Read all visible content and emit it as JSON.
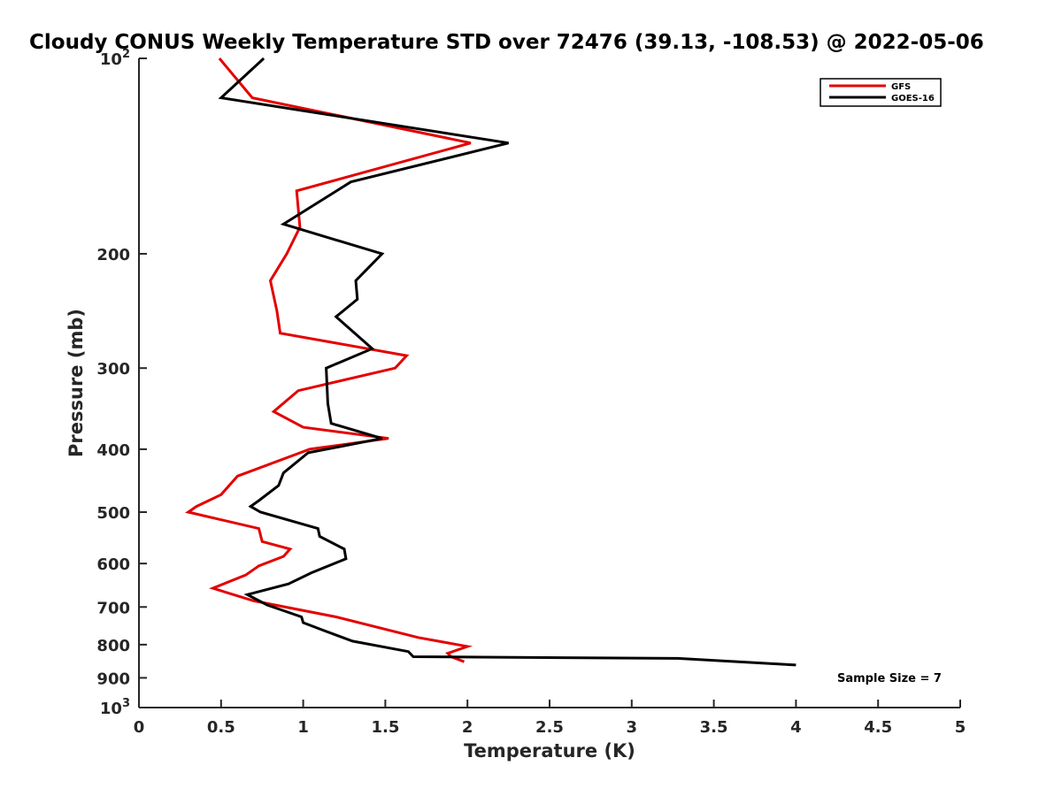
{
  "chart_data": {
    "type": "line",
    "title": "Cloudy CONUS Weekly Temperature STD over 72476 (39.13, -108.53) @ 2022-05-06",
    "xlabel": "Temperature (K)",
    "ylabel": "Pressure (mb)",
    "xlim": [
      0,
      5
    ],
    "ylim": [
      100,
      1000
    ],
    "yscale": "log",
    "y_reversed": true,
    "x_ticks": [
      "0",
      "0.5",
      "1",
      "1.5",
      "2",
      "2.5",
      "3",
      "3.5",
      "4",
      "4.5",
      "5"
    ],
    "x_tick_values": [
      0,
      0.5,
      1,
      1.5,
      2,
      2.5,
      3,
      3.5,
      4,
      4.5,
      5
    ],
    "y_ticks": [
      {
        "value": 100,
        "label": "10",
        "sup": "2"
      },
      {
        "value": 200,
        "label": "200",
        "sup": ""
      },
      {
        "value": 300,
        "label": "300",
        "sup": ""
      },
      {
        "value": 400,
        "label": "400",
        "sup": ""
      },
      {
        "value": 500,
        "label": "500",
        "sup": ""
      },
      {
        "value": 600,
        "label": "600",
        "sup": ""
      },
      {
        "value": 700,
        "label": "700",
        "sup": ""
      },
      {
        "value": 800,
        "label": "800",
        "sup": ""
      },
      {
        "value": 900,
        "label": "900",
        "sup": ""
      },
      {
        "value": 1000,
        "label": "10",
        "sup": "3"
      }
    ],
    "grid": false,
    "legend_position": "top-right",
    "annotation": "Sample Size = 7",
    "series": [
      {
        "name": "GFS",
        "color": "#e30000",
        "points": [
          [
            0.49,
            100
          ],
          [
            0.69,
            115
          ],
          [
            2.02,
            135
          ],
          [
            0.96,
            160
          ],
          [
            0.98,
            182
          ],
          [
            0.9,
            200
          ],
          [
            0.8,
            220
          ],
          [
            0.84,
            245
          ],
          [
            0.86,
            265
          ],
          [
            1.63,
            287
          ],
          [
            1.56,
            300
          ],
          [
            0.97,
            325
          ],
          [
            0.82,
            350
          ],
          [
            1.0,
            370
          ],
          [
            1.52,
            385
          ],
          [
            1.04,
            400
          ],
          [
            0.6,
            440
          ],
          [
            0.5,
            470
          ],
          [
            0.35,
            490
          ],
          [
            0.3,
            500
          ],
          [
            0.73,
            530
          ],
          [
            0.75,
            555
          ],
          [
            0.92,
            570
          ],
          [
            0.88,
            585
          ],
          [
            0.73,
            605
          ],
          [
            0.65,
            625
          ],
          [
            0.45,
            655
          ],
          [
            0.7,
            685
          ],
          [
            1.2,
            725
          ],
          [
            1.7,
            780
          ],
          [
            2.0,
            805
          ],
          [
            1.88,
            825
          ],
          [
            1.9,
            835
          ],
          [
            1.98,
            850
          ]
        ]
      },
      {
        "name": "GOES-16",
        "color": "#000000",
        "points": [
          [
            0.76,
            100
          ],
          [
            0.5,
            115
          ],
          [
            2.25,
            135
          ],
          [
            1.29,
            155
          ],
          [
            0.88,
            180
          ],
          [
            1.48,
            200
          ],
          [
            1.32,
            220
          ],
          [
            1.33,
            235
          ],
          [
            1.2,
            250
          ],
          [
            1.42,
            280
          ],
          [
            1.14,
            300
          ],
          [
            1.15,
            340
          ],
          [
            1.17,
            365
          ],
          [
            1.48,
            385
          ],
          [
            1.03,
            405
          ],
          [
            0.88,
            435
          ],
          [
            0.85,
            455
          ],
          [
            0.73,
            480
          ],
          [
            0.68,
            490
          ],
          [
            0.74,
            500
          ],
          [
            1.09,
            530
          ],
          [
            1.1,
            545
          ],
          [
            1.25,
            570
          ],
          [
            1.26,
            590
          ],
          [
            1.05,
            620
          ],
          [
            0.91,
            645
          ],
          [
            0.66,
            670
          ],
          [
            0.78,
            695
          ],
          [
            0.99,
            725
          ],
          [
            1.0,
            740
          ],
          [
            1.12,
            760
          ],
          [
            1.3,
            790
          ],
          [
            1.64,
            820
          ],
          [
            1.67,
            835
          ],
          [
            3.28,
            840
          ],
          [
            4.0,
            860
          ]
        ]
      }
    ]
  }
}
